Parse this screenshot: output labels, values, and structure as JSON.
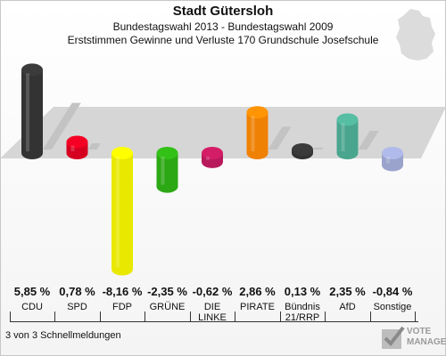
{
  "header": {
    "title": "Stadt Gütersloh",
    "subtitle": "Bundestagswahl 2013 - Bundestagswahl 2009",
    "subtitle2": "Erststimmen Gewinne und Verluste 170 Grundschule Josefschule"
  },
  "footer": {
    "status": "3 von 3 Schnellmeldungen"
  },
  "logo": {
    "line1": "VOTE",
    "line2": "MANAGER"
  },
  "chart_data": {
    "type": "bar",
    "title": "Stadt Gütersloh",
    "categories": [
      "CDU",
      "SPD",
      "FDP",
      "GRÜNE",
      "DIE LINKE",
      "PIRATE",
      "Bündnis 21/RRP",
      "AfD",
      "Sonstige"
    ],
    "category_lines": [
      [
        "CDU"
      ],
      [
        "SPD"
      ],
      [
        "FDP"
      ],
      [
        "GRÜNE"
      ],
      [
        "DIE",
        "LINKE"
      ],
      [
        "PIRATE"
      ],
      [
        "Bündnis",
        "21/RRP"
      ],
      [
        "AfD"
      ],
      [
        "Sonstige"
      ]
    ],
    "values": [
      5.85,
      0.78,
      -8.16,
      -2.35,
      -0.62,
      2.86,
      0.13,
      2.35,
      -0.84
    ],
    "labels": [
      "5,85 %",
      "0,78 %",
      "-8,16 %",
      "-2,35 %",
      "-0,62 %",
      "2,86 %",
      "0,13 %",
      "2,35 %",
      "-0,84 %"
    ],
    "colors": [
      "#333333",
      "#d5001f",
      "#e8e800",
      "#2ca815",
      "#b8195a",
      "#ef8104",
      "#333333",
      "#4aa58e",
      "#9aa3cc"
    ],
    "unit": "%"
  }
}
